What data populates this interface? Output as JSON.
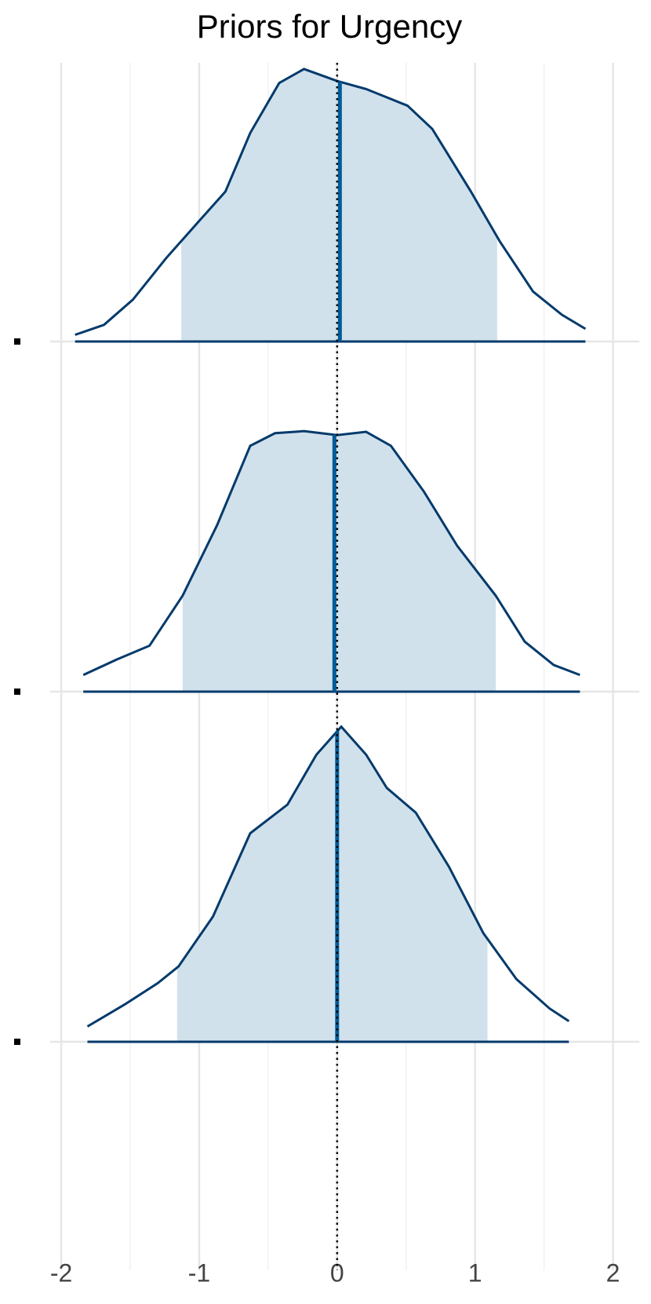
{
  "chart_data": {
    "type": "ridgeline",
    "title": "Priors for Urgency",
    "xlim": [
      -2.08,
      2.19
    ],
    "xticks": [
      -2,
      -1,
      0,
      1,
      2
    ],
    "xminor": [
      -1.5,
      -0.5,
      0.5,
      1.5
    ],
    "categories": [
      null,
      null,
      null
    ],
    "refline": 0,
    "grid": true,
    "line_color": "#033a6b",
    "fill_color": "#d1e1ec",
    "median_color": "#005b96",
    "series": [
      {
        "x": [
          -1.9,
          -1.69,
          -1.48,
          -1.24,
          -1.0,
          -0.81,
          -0.63,
          -0.42,
          -0.24,
          0,
          0.21,
          0.51,
          0.69,
          0.97,
          1.18,
          1.42,
          1.63,
          1.8
        ],
        "values": [
          0.01,
          0.025,
          0.063,
          0.125,
          0.181,
          0.225,
          0.313,
          0.388,
          0.409,
          0.391,
          0.379,
          0.354,
          0.319,
          0.225,
          0.15,
          0.075,
          0.04,
          0.019
        ],
        "interval": [
          -1.13,
          1.16
        ],
        "median": 0.02
      },
      {
        "x": [
          -1.84,
          -1.6,
          -1.36,
          -1.12,
          -0.87,
          -0.63,
          -0.45,
          -0.24,
          0,
          0.21,
          0.39,
          0.63,
          0.87,
          1.15,
          1.36,
          1.57,
          1.76
        ],
        "values": [
          0.025,
          0.048,
          0.069,
          0.144,
          0.25,
          0.369,
          0.388,
          0.391,
          0.385,
          0.39,
          0.369,
          0.3,
          0.219,
          0.144,
          0.075,
          0.04,
          0.025
        ],
        "interval": [
          -1.12,
          1.15
        ],
        "median": -0.02
      },
      {
        "x": [
          -1.81,
          -1.54,
          -1.3,
          -1.15,
          -0.9,
          -0.63,
          -0.36,
          -0.15,
          0.03,
          0.21,
          0.36,
          0.57,
          0.81,
          1.06,
          1.3,
          1.54,
          1.68
        ],
        "values": [
          0.023,
          0.056,
          0.088,
          0.113,
          0.188,
          0.313,
          0.356,
          0.431,
          0.473,
          0.431,
          0.381,
          0.344,
          0.263,
          0.163,
          0.094,
          0.05,
          0.031
        ],
        "interval": [
          -1.16,
          1.09
        ],
        "median": 0
      }
    ]
  }
}
